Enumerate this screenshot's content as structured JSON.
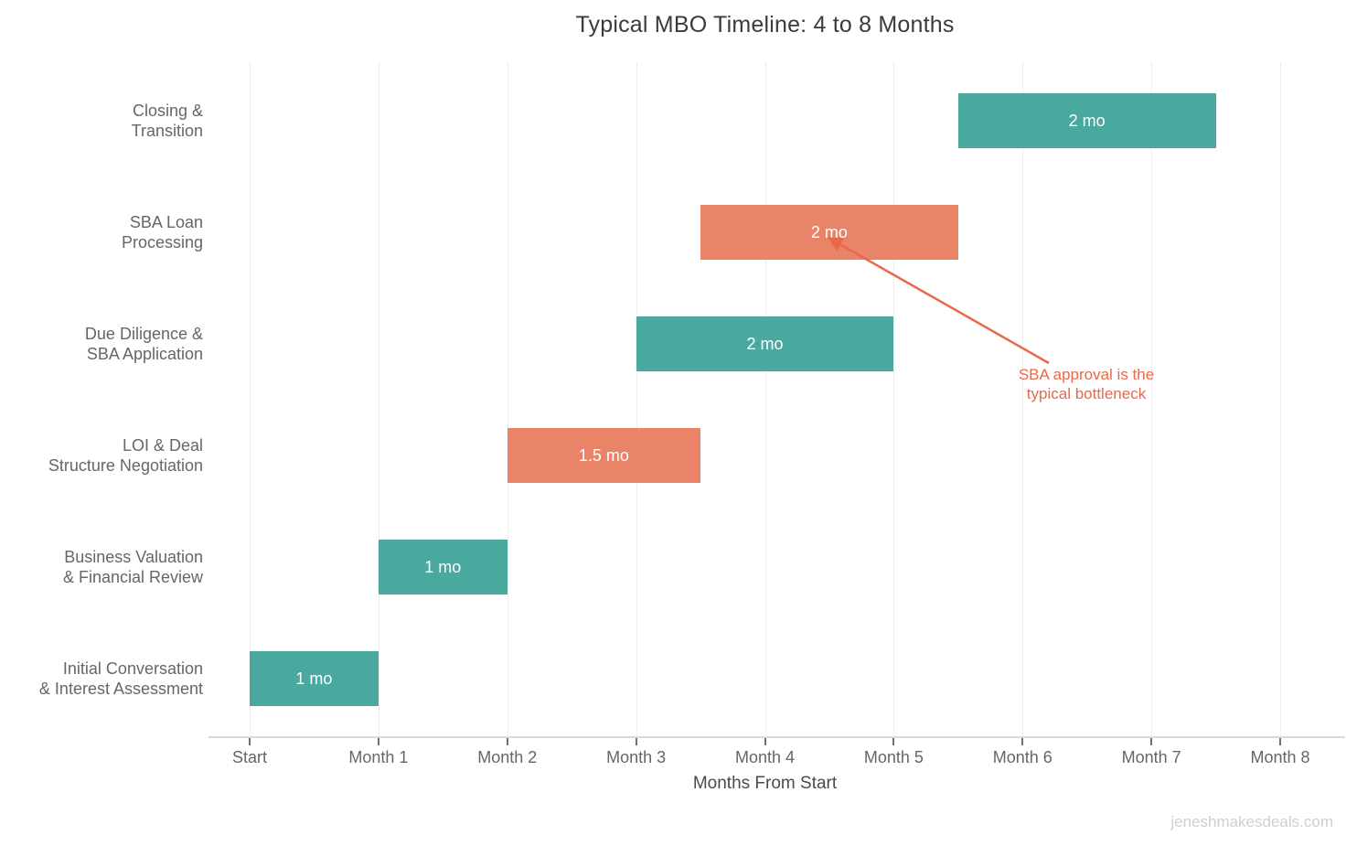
{
  "title": "Typical MBO Timeline: 4 to 8 Months",
  "watermark": "jeneshmakesdeals.com",
  "chart_data": {
    "type": "bar",
    "variant": "gantt",
    "orientation": "horizontal",
    "title": "Typical MBO Timeline: 4 to 8 Months",
    "xlabel": "Months From Start",
    "ylabel": "",
    "xlim": [
      0,
      8
    ],
    "grid": "vertical-dotted",
    "x_ticks": [
      {
        "value": 0,
        "label": "Start"
      },
      {
        "value": 1,
        "label": "Month 1"
      },
      {
        "value": 2,
        "label": "Month 2"
      },
      {
        "value": 3,
        "label": "Month 3"
      },
      {
        "value": 4,
        "label": "Month 4"
      },
      {
        "value": 5,
        "label": "Month 5"
      },
      {
        "value": 6,
        "label": "Month 6"
      },
      {
        "value": 7,
        "label": "Month 7"
      },
      {
        "value": 8,
        "label": "Month 8"
      }
    ],
    "tasks": [
      {
        "name": "Closing & Transition",
        "label_lines": [
          "Closing &",
          "Transition"
        ],
        "start": 5.5,
        "end": 7.5,
        "duration_label": "2 mo",
        "color_key": "teal"
      },
      {
        "name": "SBA Loan Processing",
        "label_lines": [
          "SBA Loan",
          "Processing"
        ],
        "start": 3.5,
        "end": 5.5,
        "duration_label": "2 mo",
        "color_key": "salmon"
      },
      {
        "name": "Due Diligence & SBA Application",
        "label_lines": [
          "Due Diligence &",
          "SBA Application"
        ],
        "start": 3,
        "end": 5,
        "duration_label": "2 mo",
        "color_key": "teal"
      },
      {
        "name": "LOI & Deal Structure Negotiation",
        "label_lines": [
          "LOI & Deal",
          "Structure Negotiation"
        ],
        "start": 2,
        "end": 3.5,
        "duration_label": "1.5 mo",
        "color_key": "salmon"
      },
      {
        "name": "Business Valuation & Financial Review",
        "label_lines": [
          "Business Valuation",
          "& Financial Review"
        ],
        "start": 1,
        "end": 2,
        "duration_label": "1 mo",
        "color_key": "teal"
      },
      {
        "name": "Initial Conversation & Interest Assessment",
        "label_lines": [
          "Initial Conversation",
          "& Interest Assessment"
        ],
        "start": 0,
        "end": 1,
        "duration_label": "1 mo",
        "color_key": "teal"
      }
    ],
    "annotation": {
      "text_lines": [
        "SBA approval is the",
        "typical bottleneck"
      ],
      "target_task": "SBA Loan Processing"
    },
    "colors": {
      "teal": "#4AA99E",
      "salmon": "#E98468",
      "annotation": "#E8694A",
      "axis_line": "#d9d9d9",
      "tick": "#6f6f6f",
      "text": "#666666"
    }
  }
}
